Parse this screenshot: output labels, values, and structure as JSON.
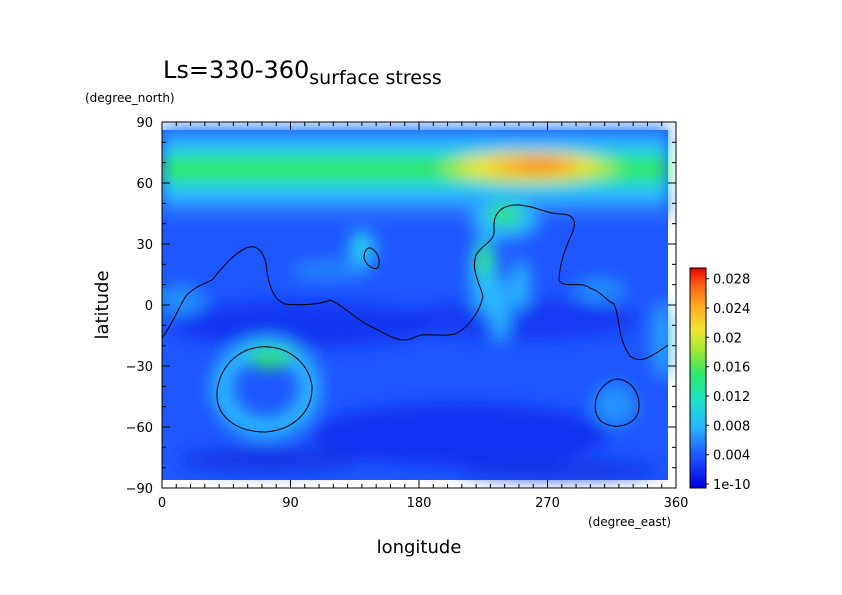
{
  "chart_data": {
    "type": "heatmap",
    "title_main": "Ls=330-360",
    "title_sub": "surface stress",
    "xlabel": "longitude",
    "ylabel": "latitude",
    "x_unit": "(degree_east)",
    "y_unit": "(degree_north)",
    "xlim": [
      0,
      360
    ],
    "ylim": [
      -90,
      90
    ],
    "x_ticks": [
      "0",
      "90",
      "180",
      "270",
      "360"
    ],
    "y_ticks": [
      "90",
      "60",
      "30",
      "0",
      "−30",
      "−60",
      "−90"
    ],
    "x_tick_values": [
      0,
      90,
      180,
      270,
      360
    ],
    "y_tick_values": [
      90,
      60,
      30,
      0,
      -30,
      -60,
      -90
    ],
    "colorbar": {
      "labels": [
        "0.028",
        "0.024",
        "0.02",
        "0.016",
        "0.012",
        "0.008",
        "0.004",
        "1e-10"
      ],
      "label_values": [
        0.028,
        0.024,
        0.02,
        0.016,
        0.012,
        0.008,
        0.004,
        0
      ],
      "range": [
        0,
        0.03
      ]
    },
    "field_features": [
      {
        "lon_range": [
          0,
          360
        ],
        "lat": 68,
        "value": 0.014,
        "note": "northern high-latitude band"
      },
      {
        "lon": 265,
        "lat": 69,
        "value": 0.026,
        "note": "maximum"
      },
      {
        "lon": 75,
        "lat": -27,
        "value": 0.016
      },
      {
        "lon": 240,
        "lat": 38,
        "value": 0.013
      },
      {
        "lon": 140,
        "lat": 24,
        "value": 0.011
      }
    ],
    "background_value": 0.004
  }
}
